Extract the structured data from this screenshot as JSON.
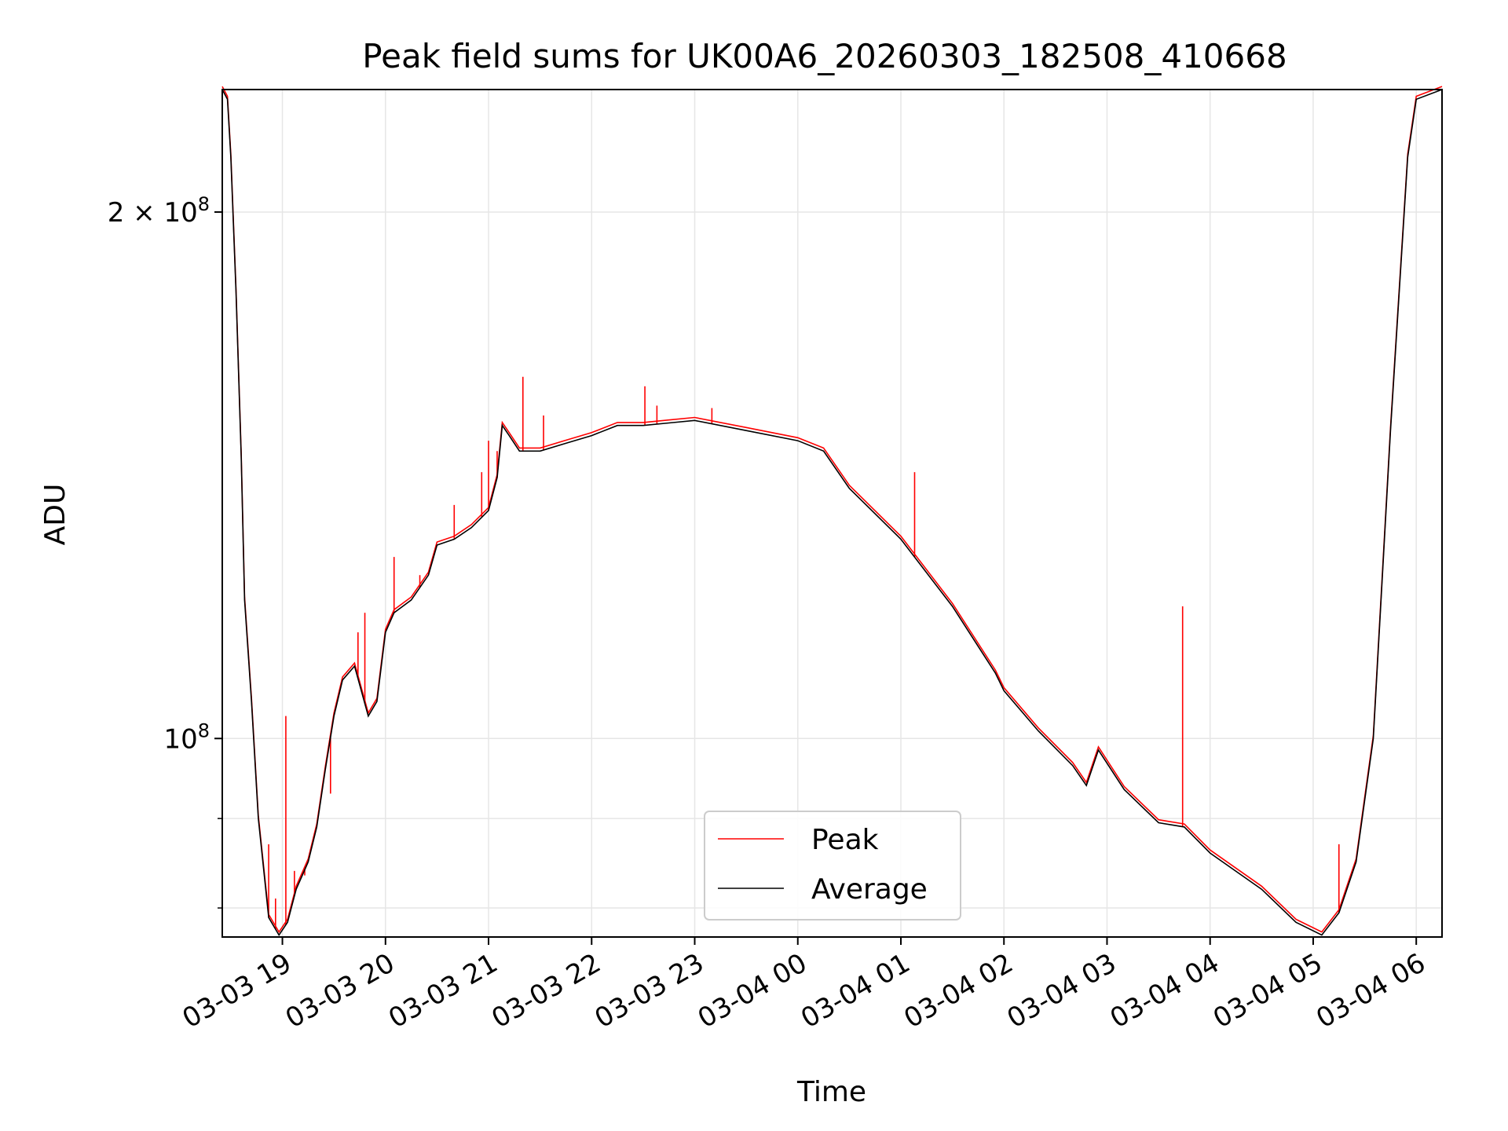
{
  "chart_data": {
    "type": "line",
    "title": "Peak field sums for UK00A6_20260303_182508_410668",
    "xlabel": "Time",
    "ylabel": "ADU",
    "y_scale": "log",
    "grid": true,
    "legend_placement": "lower-center",
    "xlim": [
      "2026-03-03 18:25",
      "2026-03-04 06:15"
    ],
    "ylim": [
      77000000,
      235000000
    ],
    "x_ticks": [
      {
        "value": "2026-03-03 19:00",
        "label": "03-03 19"
      },
      {
        "value": "2026-03-03 20:00",
        "label": "03-03 20"
      },
      {
        "value": "2026-03-03 21:00",
        "label": "03-03 21"
      },
      {
        "value": "2026-03-03 22:00",
        "label": "03-03 22"
      },
      {
        "value": "2026-03-03 23:00",
        "label": "03-03 23"
      },
      {
        "value": "2026-03-04 00:00",
        "label": "03-04 00"
      },
      {
        "value": "2026-03-04 01:00",
        "label": "03-04 01"
      },
      {
        "value": "2026-03-04 02:00",
        "label": "03-04 02"
      },
      {
        "value": "2026-03-04 03:00",
        "label": "03-04 03"
      },
      {
        "value": "2026-03-04 04:00",
        "label": "03-04 04"
      },
      {
        "value": "2026-03-04 05:00",
        "label": "03-04 05"
      },
      {
        "value": "2026-03-04 06:00",
        "label": "03-04 06"
      }
    ],
    "y_major_ticks": [
      {
        "value": 100000000,
        "base": "10",
        "exponent": "8",
        "mantissa": ""
      },
      {
        "value": 200000000,
        "base": "10",
        "exponent": "8",
        "mantissa": "2 × "
      }
    ],
    "y_minor_ticks": [
      80000000,
      90000000
    ],
    "colors": {
      "peak": "#ff0000",
      "average": "#000000",
      "grid": "#e6e6e6"
    },
    "series": [
      {
        "name": "Average",
        "color": "#000000",
        "points": [
          [
            "2026-03-03 18:25",
            235000000
          ],
          [
            "2026-03-03 18:28",
            232000000
          ],
          [
            "2026-03-03 18:30",
            215000000
          ],
          [
            "2026-03-03 18:33",
            180000000
          ],
          [
            "2026-03-03 18:36",
            145000000
          ],
          [
            "2026-03-03 18:38",
            120000000
          ],
          [
            "2026-03-03 18:42",
            105000000
          ],
          [
            "2026-03-03 18:46",
            90000000
          ],
          [
            "2026-03-03 18:52",
            79000000
          ],
          [
            "2026-03-03 18:58",
            77200000
          ],
          [
            "2026-03-03 19:03",
            78500000
          ],
          [
            "2026-03-03 19:08",
            82000000
          ],
          [
            "2026-03-03 19:15",
            85000000
          ],
          [
            "2026-03-03 19:20",
            89000000
          ],
          [
            "2026-03-03 19:25",
            96000000
          ],
          [
            "2026-03-03 19:30",
            103000000
          ],
          [
            "2026-03-03 19:35",
            108000000
          ],
          [
            "2026-03-03 19:42",
            110000000
          ],
          [
            "2026-03-03 19:50",
            103000000
          ],
          [
            "2026-03-03 19:55",
            105000000
          ],
          [
            "2026-03-03 20:00",
            115000000
          ],
          [
            "2026-03-03 20:05",
            118000000
          ],
          [
            "2026-03-03 20:15",
            120000000
          ],
          [
            "2026-03-03 20:25",
            124000000
          ],
          [
            "2026-03-03 20:30",
            129000000
          ],
          [
            "2026-03-03 20:40",
            130000000
          ],
          [
            "2026-03-03 20:50",
            132000000
          ],
          [
            "2026-03-03 21:00",
            135000000
          ],
          [
            "2026-03-03 21:05",
            141000000
          ],
          [
            "2026-03-03 21:08",
            151000000
          ],
          [
            "2026-03-03 21:12",
            149000000
          ],
          [
            "2026-03-03 21:18",
            146000000
          ],
          [
            "2026-03-03 21:30",
            146000000
          ],
          [
            "2026-03-03 21:45",
            147500000
          ],
          [
            "2026-03-03 22:00",
            149000000
          ],
          [
            "2026-03-03 22:15",
            151000000
          ],
          [
            "2026-03-03 22:30",
            151000000
          ],
          [
            "2026-03-03 22:45",
            151500000
          ],
          [
            "2026-03-03 23:00",
            152000000
          ],
          [
            "2026-03-03 23:30",
            150000000
          ],
          [
            "2026-03-04 00:00",
            148000000
          ],
          [
            "2026-03-04 00:15",
            146000000
          ],
          [
            "2026-03-04 00:30",
            139000000
          ],
          [
            "2026-03-04 01:00",
            130000000
          ],
          [
            "2026-03-04 01:30",
            119000000
          ],
          [
            "2026-03-04 01:55",
            109000000
          ],
          [
            "2026-03-04 02:00",
            106500000
          ],
          [
            "2026-03-04 02:20",
            101000000
          ],
          [
            "2026-03-04 02:40",
            96500000
          ],
          [
            "2026-03-04 02:48",
            94000000
          ],
          [
            "2026-03-04 02:55",
            98500000
          ],
          [
            "2026-03-04 03:10",
            93500000
          ],
          [
            "2026-03-04 03:30",
            89500000
          ],
          [
            "2026-03-04 03:45",
            89000000
          ],
          [
            "2026-03-04 04:00",
            86000000
          ],
          [
            "2026-03-04 04:30",
            82000000
          ],
          [
            "2026-03-04 04:50",
            78500000
          ],
          [
            "2026-03-04 05:05",
            77200000
          ],
          [
            "2026-03-04 05:15",
            79500000
          ],
          [
            "2026-03-04 05:25",
            85000000
          ],
          [
            "2026-03-04 05:35",
            100000000
          ],
          [
            "2026-03-04 05:45",
            150000000
          ],
          [
            "2026-03-04 05:55",
            215000000
          ],
          [
            "2026-03-04 06:00",
            232000000
          ],
          [
            "2026-03-04 06:15",
            235000000
          ]
        ]
      },
      {
        "name": "Peak",
        "color": "#ff0000",
        "spikes": [
          [
            "2026-03-03 18:52",
            87000000
          ],
          [
            "2026-03-03 18:56",
            81000000
          ],
          [
            "2026-03-03 19:02",
            103000000
          ],
          [
            "2026-03-03 19:07",
            84000000
          ],
          [
            "2026-03-03 19:13",
            83500000
          ],
          [
            "2026-03-03 19:28",
            93000000
          ],
          [
            "2026-03-03 19:44",
            115000000
          ],
          [
            "2026-03-03 19:48",
            118000000
          ],
          [
            "2026-03-03 20:05",
            127000000
          ],
          [
            "2026-03-03 20:20",
            124000000
          ],
          [
            "2026-03-03 20:40",
            136000000
          ],
          [
            "2026-03-03 20:56",
            142000000
          ],
          [
            "2026-03-03 21:00",
            148000000
          ],
          [
            "2026-03-03 21:05",
            146000000
          ],
          [
            "2026-03-03 21:20",
            161000000
          ],
          [
            "2026-03-03 21:32",
            153000000
          ],
          [
            "2026-03-03 22:31",
            159000000
          ],
          [
            "2026-03-03 22:38",
            155000000
          ],
          [
            "2026-03-03 23:10",
            154500000
          ],
          [
            "2026-03-04 01:08",
            142000000
          ],
          [
            "2026-03-04 03:44",
            119000000
          ],
          [
            "2026-03-04 05:15",
            87000000
          ]
        ]
      }
    ]
  },
  "legend": {
    "items": [
      {
        "label": "Peak",
        "color": "#ff0000"
      },
      {
        "label": "Average",
        "color": "#000000"
      }
    ]
  }
}
